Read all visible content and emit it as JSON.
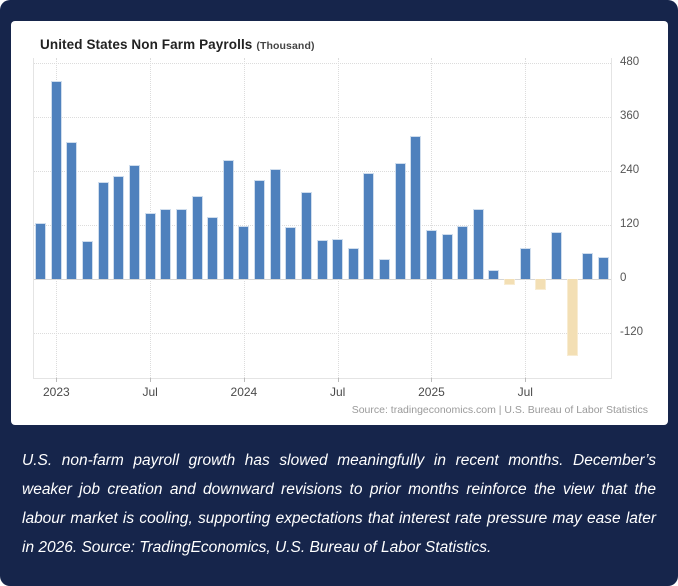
{
  "frame": {
    "background_color": "#16254b"
  },
  "chart_card": {
    "title": "United States Non Farm Payrolls",
    "title_suffix": "(Thousand)",
    "source": "Source: tradingeconomics.com | U.S. Bureau of Labor Statistics"
  },
  "chart_data": {
    "type": "bar",
    "title": "United States Non Farm Payrolls (Thousand)",
    "ylabel": "Thousand",
    "values": [
      125,
      440,
      303,
      85,
      215,
      228,
      254,
      147,
      156,
      156,
      184,
      138,
      263,
      117,
      219,
      243,
      115,
      192,
      87,
      88,
      70,
      236,
      45,
      257,
      318,
      110,
      101,
      118,
      156,
      20,
      -13,
      70,
      -25,
      105,
      -170,
      57,
      48
    ],
    "x_ticks": [
      {
        "index": 1,
        "label": "2023"
      },
      {
        "index": 7,
        "label": "Jul"
      },
      {
        "index": 13,
        "label": "2024"
      },
      {
        "index": 19,
        "label": "Jul"
      },
      {
        "index": 25,
        "label": "2025"
      },
      {
        "index": 31,
        "label": "Jul"
      }
    ],
    "y_ticks": [
      480,
      360,
      240,
      120,
      0,
      -120
    ],
    "ylim": [
      -219,
      490
    ],
    "grid": "dotted",
    "legend_position": "none",
    "bar_color_positive": "#4f81bd",
    "bar_color_negative": "#f3dfb4"
  },
  "caption": {
    "text": "U.S. non-farm payroll growth has slowed meaningfully in recent months. December’s weaker job creation and downward revisions to prior months reinforce the view that the labour market is cooling, supporting expectations that interest rate pressure may ease later in 2026. Source: TradingEconomics, U.S. Bureau of Labor Statistics."
  }
}
